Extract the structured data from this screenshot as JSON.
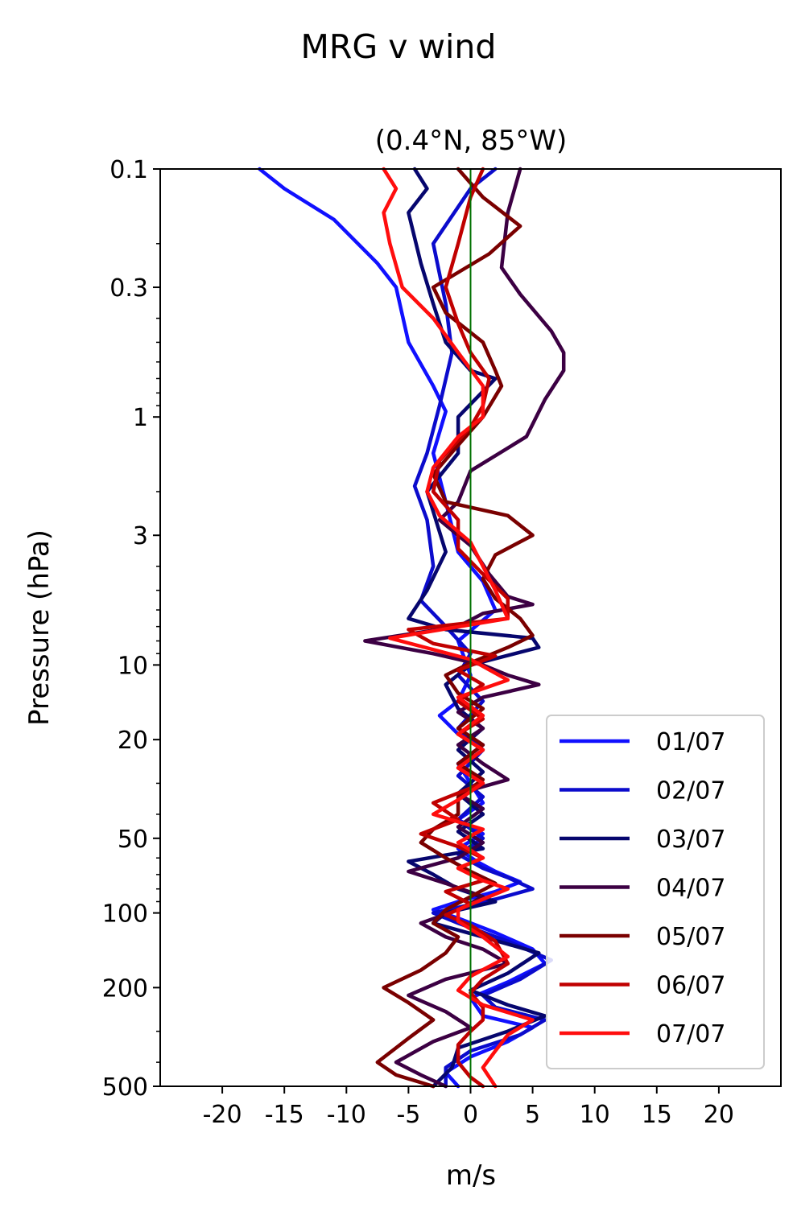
{
  "figure": {
    "suptitle": "MRG v wind"
  },
  "chart_data": {
    "type": "line",
    "title": "(0.4°N, 85°W)",
    "xlabel": "m/s",
    "ylabel": "Pressure (hPa)",
    "xlim": [
      -25,
      25
    ],
    "ylim": [
      500,
      0.1
    ],
    "yscale": "log",
    "x_ticks": [
      -20,
      -15,
      -10,
      -5,
      0,
      5,
      10,
      15,
      20
    ],
    "x_tick_labels": [
      "-20",
      "-15",
      "-10",
      "-5",
      "0",
      "5",
      "10",
      "15",
      "20"
    ],
    "y_ticks": [
      0.1,
      0.3,
      1,
      3,
      10,
      20,
      50,
      100,
      200,
      500
    ],
    "y_tick_labels": [
      "0.1",
      "0.3",
      "1",
      "3",
      "10",
      "20",
      "50",
      "100",
      "200",
      "500"
    ],
    "zero_line": {
      "x": 0,
      "color": "#007000"
    },
    "legend": {
      "position": "lower-right"
    },
    "series": [
      {
        "name": "01/07",
        "color": "#1010ff",
        "points": [
          [
            -17,
            0.1
          ],
          [
            -15,
            0.12
          ],
          [
            -11,
            0.16
          ],
          [
            -7.5,
            0.24
          ],
          [
            -6,
            0.3
          ],
          [
            -5,
            0.5
          ],
          [
            -3,
            0.75
          ],
          [
            -2,
            0.95
          ],
          [
            -3,
            1.4
          ],
          [
            -2,
            2.2
          ],
          [
            -1,
            3.5
          ],
          [
            1,
            4.6
          ],
          [
            2,
            6
          ],
          [
            -1,
            8
          ],
          [
            0,
            11
          ],
          [
            -1,
            14
          ],
          [
            -2.5,
            16
          ],
          [
            -1,
            19
          ],
          [
            1,
            21
          ],
          [
            -1,
            25
          ],
          [
            0,
            30
          ],
          [
            1,
            36
          ],
          [
            -1,
            42
          ],
          [
            1,
            48
          ],
          [
            -1,
            55
          ],
          [
            0.5,
            62
          ],
          [
            2,
            68
          ],
          [
            4,
            75
          ],
          [
            2,
            82
          ],
          [
            -1,
            90
          ],
          [
            -3,
            97
          ],
          [
            -1,
            105
          ],
          [
            2,
            120
          ],
          [
            5,
            140
          ],
          [
            6,
            160
          ],
          [
            3,
            190
          ],
          [
            0,
            220
          ],
          [
            1,
            260
          ],
          [
            5,
            290
          ],
          [
            3,
            330
          ],
          [
            0,
            380
          ],
          [
            -2,
            440
          ],
          [
            -1,
            500
          ]
        ]
      },
      {
        "name": "02/07",
        "color": "#0b0bcc",
        "points": [
          [
            2,
            0.1
          ],
          [
            0,
            0.12
          ],
          [
            -3,
            0.2
          ],
          [
            -2,
            0.35
          ],
          [
            -1.5,
            0.55
          ],
          [
            -2.5,
            0.9
          ],
          [
            -3.5,
            1.4
          ],
          [
            -4.5,
            1.9
          ],
          [
            -3.5,
            2.6
          ],
          [
            -3,
            4
          ],
          [
            -4,
            5.5
          ],
          [
            -2,
            7
          ],
          [
            0,
            9
          ],
          [
            -1,
            11
          ],
          [
            1,
            14
          ],
          [
            -1,
            18
          ],
          [
            1,
            22
          ],
          [
            -1,
            28
          ],
          [
            1,
            34
          ],
          [
            -1,
            42
          ],
          [
            1,
            50
          ],
          [
            -1,
            58
          ],
          [
            1,
            66
          ],
          [
            3,
            72
          ],
          [
            5,
            80
          ],
          [
            2,
            88
          ],
          [
            -1,
            95
          ],
          [
            -3,
            100
          ],
          [
            -1,
            110
          ],
          [
            3,
            130
          ],
          [
            6.5,
            155
          ],
          [
            4,
            185
          ],
          [
            1,
            215
          ],
          [
            2,
            240
          ],
          [
            6,
            270
          ],
          [
            4,
            310
          ],
          [
            0,
            360
          ],
          [
            -2,
            420
          ],
          [
            -2,
            500
          ]
        ]
      },
      {
        "name": "03/07",
        "color": "#06066e",
        "points": [
          [
            -4.5,
            0.1
          ],
          [
            -3.5,
            0.12
          ],
          [
            -5,
            0.15
          ],
          [
            -4,
            0.24
          ],
          [
            -3,
            0.35
          ],
          [
            -2,
            0.5
          ],
          [
            0,
            0.65
          ],
          [
            2,
            0.7
          ],
          [
            -1,
            1
          ],
          [
            -1,
            1.4
          ],
          [
            -3.5,
            2
          ],
          [
            -2,
            3.5
          ],
          [
            -3.5,
            5
          ],
          [
            -5,
            6.5
          ],
          [
            -2,
            7.2
          ],
          [
            5,
            7.8
          ],
          [
            5.5,
            8.5
          ],
          [
            0,
            10
          ],
          [
            -2,
            12
          ],
          [
            -1,
            15
          ],
          [
            1,
            18
          ],
          [
            -1,
            22
          ],
          [
            1,
            27
          ],
          [
            -1,
            33
          ],
          [
            1,
            40
          ],
          [
            -1,
            47
          ],
          [
            1,
            55
          ],
          [
            -5,
            62
          ],
          [
            -3,
            70
          ],
          [
            -1,
            80
          ],
          [
            2,
            90
          ],
          [
            -2,
            100
          ],
          [
            -3,
            110
          ],
          [
            1,
            125
          ],
          [
            5.5,
            145
          ],
          [
            3,
            175
          ],
          [
            0,
            205
          ],
          [
            3,
            235
          ],
          [
            6,
            260
          ],
          [
            3,
            300
          ],
          [
            -1,
            350
          ],
          [
            -1.5,
            420
          ],
          [
            -3,
            500
          ]
        ]
      },
      {
        "name": "04/07",
        "color": "#3c0043",
        "points": [
          [
            4,
            0.1
          ],
          [
            3,
            0.15
          ],
          [
            2.5,
            0.25
          ],
          [
            4,
            0.32
          ],
          [
            6.5,
            0.45
          ],
          [
            7.5,
            0.55
          ],
          [
            7.5,
            0.65
          ],
          [
            6,
            0.85
          ],
          [
            4.5,
            1.2
          ],
          [
            0,
            1.65
          ],
          [
            -1,
            2.2
          ],
          [
            -2.5,
            2.6
          ],
          [
            0,
            3.3
          ],
          [
            1.5,
            4.3
          ],
          [
            3,
            5.3
          ],
          [
            5,
            5.7
          ],
          [
            1,
            6.2
          ],
          [
            -1,
            7
          ],
          [
            -8.5,
            8
          ],
          [
            -3,
            9
          ],
          [
            1,
            10
          ],
          [
            3,
            11
          ],
          [
            5.5,
            12
          ],
          [
            1,
            13.5
          ],
          [
            -1,
            15.5
          ],
          [
            1,
            18
          ],
          [
            -1,
            21
          ],
          [
            1,
            25
          ],
          [
            3,
            29
          ],
          [
            -1,
            33
          ],
          [
            1,
            38
          ],
          [
            -1,
            45
          ],
          [
            1,
            52
          ],
          [
            -1,
            60
          ],
          [
            -5,
            68
          ],
          [
            -2,
            76
          ],
          [
            1,
            86
          ],
          [
            -1,
            97
          ],
          [
            -4,
            110
          ],
          [
            -2,
            125
          ],
          [
            1,
            140
          ],
          [
            3,
            160
          ],
          [
            -2,
            185
          ],
          [
            -5,
            215
          ],
          [
            -2,
            250
          ],
          [
            0,
            290
          ],
          [
            -3,
            330
          ],
          [
            -6,
            400
          ],
          [
            -4,
            450
          ],
          [
            -2,
            500
          ]
        ]
      },
      {
        "name": "05/07",
        "color": "#7a0000",
        "points": [
          [
            -1,
            0.1
          ],
          [
            1,
            0.13
          ],
          [
            4,
            0.17
          ],
          [
            1.5,
            0.22
          ],
          [
            -3,
            0.3
          ],
          [
            -2,
            0.38
          ],
          [
            1,
            0.5
          ],
          [
            2,
            0.65
          ],
          [
            2.5,
            0.75
          ],
          [
            1,
            1
          ],
          [
            -1,
            1.3
          ],
          [
            -3,
            1.7
          ],
          [
            -2,
            2.2
          ],
          [
            3,
            2.5
          ],
          [
            5,
            3
          ],
          [
            2,
            3.6
          ],
          [
            1,
            4.5
          ],
          [
            2,
            5.4
          ],
          [
            4,
            6.5
          ],
          [
            5,
            7.6
          ],
          [
            3,
            8.5
          ],
          [
            0,
            9.8
          ],
          [
            -2,
            11
          ],
          [
            -1,
            13
          ],
          [
            1,
            15
          ],
          [
            -1,
            18
          ],
          [
            1,
            21
          ],
          [
            -1,
            25
          ],
          [
            1,
            29
          ],
          [
            -1,
            34
          ],
          [
            -1,
            40
          ],
          [
            -3,
            46
          ],
          [
            -4,
            52
          ],
          [
            -2,
            60
          ],
          [
            0,
            68
          ],
          [
            2,
            76
          ],
          [
            0,
            86
          ],
          [
            -2,
            97
          ],
          [
            -3,
            110
          ],
          [
            -1,
            125
          ],
          [
            -2,
            145
          ],
          [
            -4,
            170
          ],
          [
            -7,
            200
          ],
          [
            -5,
            230
          ],
          [
            -3,
            270
          ],
          [
            -5,
            320
          ],
          [
            -7.5,
            400
          ],
          [
            -6,
            450
          ],
          [
            -3,
            500
          ]
        ]
      },
      {
        "name": "06/07",
        "color": "#c00000",
        "points": [
          [
            1,
            0.1
          ],
          [
            0,
            0.13
          ],
          [
            -1,
            0.2
          ],
          [
            -2,
            0.3
          ],
          [
            -1,
            0.42
          ],
          [
            0,
            0.55
          ],
          [
            1.5,
            0.7
          ],
          [
            1,
            0.9
          ],
          [
            0,
            1.1
          ],
          [
            -2.5,
            1.5
          ],
          [
            -3,
            2
          ],
          [
            -1,
            2.6
          ],
          [
            -1,
            3.4
          ],
          [
            1,
            4.3
          ],
          [
            3,
            5.4
          ],
          [
            3,
            6.5
          ],
          [
            -5,
            7.2
          ],
          [
            -3,
            8.2
          ],
          [
            2,
            9.2
          ],
          [
            -1,
            10.5
          ],
          [
            1,
            12
          ],
          [
            -1,
            14
          ],
          [
            1,
            16.5
          ],
          [
            -1,
            19
          ],
          [
            1,
            22
          ],
          [
            -1,
            26
          ],
          [
            1,
            30
          ],
          [
            -3,
            36
          ],
          [
            -1,
            42
          ],
          [
            -4,
            48
          ],
          [
            -1,
            54
          ],
          [
            1,
            60
          ],
          [
            -1,
            66
          ],
          [
            1,
            74
          ],
          [
            -2,
            82
          ],
          [
            0,
            92
          ],
          [
            -2,
            102
          ],
          [
            0,
            112
          ],
          [
            2,
            130
          ],
          [
            3,
            160
          ],
          [
            1,
            185
          ],
          [
            0,
            210
          ],
          [
            1,
            240
          ],
          [
            1,
            270
          ],
          [
            0,
            300
          ],
          [
            -1,
            340
          ],
          [
            -1,
            400
          ],
          [
            0,
            460
          ],
          [
            1,
            500
          ]
        ]
      },
      {
        "name": "07/07",
        "color": "#ff0d0d",
        "points": [
          [
            -7,
            0.1
          ],
          [
            -6,
            0.12
          ],
          [
            -7,
            0.15
          ],
          [
            -6.5,
            0.2
          ],
          [
            -5.5,
            0.3
          ],
          [
            -3,
            0.4
          ],
          [
            -1,
            0.55
          ],
          [
            1,
            0.75
          ],
          [
            1,
            1
          ],
          [
            -1,
            1.2
          ],
          [
            -3,
            1.6
          ],
          [
            -3.5,
            2
          ],
          [
            -2.5,
            2.5
          ],
          [
            0,
            3.2
          ],
          [
            1,
            4
          ],
          [
            2,
            5
          ],
          [
            3,
            6.5
          ],
          [
            -6.5,
            7.8
          ],
          [
            0,
            9.5
          ],
          [
            3,
            11.5
          ],
          [
            -1,
            13.5
          ],
          [
            1,
            16
          ],
          [
            -1,
            19
          ],
          [
            1,
            22
          ],
          [
            -1,
            26
          ],
          [
            1,
            30
          ],
          [
            -1,
            35
          ],
          [
            -3,
            40
          ],
          [
            1,
            46
          ],
          [
            -1,
            52
          ],
          [
            1,
            60
          ],
          [
            -1,
            66
          ],
          [
            1,
            74
          ],
          [
            3,
            80
          ],
          [
            1,
            88
          ],
          [
            -1,
            97
          ],
          [
            -1,
            108
          ],
          [
            1,
            125
          ],
          [
            3,
            150
          ],
          [
            0,
            180
          ],
          [
            -1,
            205
          ],
          [
            1,
            235
          ],
          [
            5,
            270
          ],
          [
            3,
            310
          ],
          [
            2,
            360
          ],
          [
            1,
            420
          ],
          [
            2,
            500
          ]
        ]
      }
    ]
  }
}
